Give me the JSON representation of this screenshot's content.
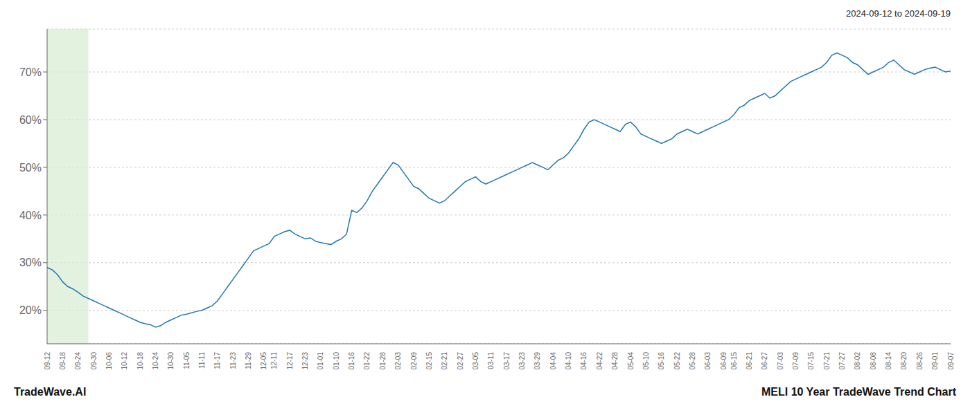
{
  "chart_data": {
    "type": "line",
    "title": "2024-09-12 to 2024-09-19",
    "annotations": [
      "TradeWave.AI",
      "MELI 10 Year TradeWave Trend Chart"
    ],
    "color": "#1f78b4",
    "grid": true,
    "highlight": {
      "start": 0,
      "end": 8,
      "color": "#d6ecd2"
    },
    "ylim": [
      13,
      79
    ],
    "yticks": [
      {
        "value": 20,
        "label": "20%"
      },
      {
        "value": 30,
        "label": "30%"
      },
      {
        "value": 40,
        "label": "40%"
      },
      {
        "value": 50,
        "label": "50%"
      },
      {
        "value": 60,
        "label": "60%"
      },
      {
        "value": 70,
        "label": "70%"
      }
    ],
    "categories": [
      "09-12",
      null,
      null,
      "09-18",
      null,
      null,
      "09-24",
      null,
      null,
      "09-30",
      null,
      null,
      "10-06",
      null,
      null,
      "10-12",
      null,
      null,
      "10-18",
      null,
      null,
      "10-24",
      null,
      null,
      "10-30",
      null,
      null,
      "11-05",
      null,
      null,
      "11-11",
      null,
      null,
      "11-17",
      null,
      null,
      "11-23",
      null,
      null,
      "11-29",
      null,
      null,
      "12-05",
      null,
      "12-11",
      null,
      null,
      "12-17",
      null,
      null,
      "12-23",
      null,
      null,
      "01-01",
      null,
      null,
      "01-10",
      null,
      null,
      "01-16",
      null,
      null,
      "01-22",
      null,
      null,
      "01-28",
      null,
      null,
      "02-03",
      null,
      null,
      "02-09",
      null,
      null,
      "02-15",
      null,
      null,
      "02-21",
      null,
      null,
      "02-27",
      null,
      null,
      "03-05",
      null,
      null,
      "03-11",
      null,
      null,
      "03-17",
      null,
      null,
      "03-23",
      null,
      null,
      "03-29",
      null,
      null,
      "04-04",
      null,
      null,
      "04-10",
      null,
      null,
      "04-16",
      null,
      null,
      "04-22",
      null,
      null,
      "04-28",
      null,
      null,
      "05-04",
      null,
      null,
      "05-10",
      null,
      null,
      "05-16",
      null,
      null,
      "05-22",
      null,
      null,
      "05-28",
      null,
      null,
      "06-03",
      null,
      null,
      "06-09",
      null,
      "06-15",
      null,
      null,
      "06-21",
      null,
      null,
      "06-27",
      null,
      null,
      "07-03",
      null,
      null,
      "07-09",
      null,
      null,
      "07-15",
      null,
      null,
      "07-21",
      null,
      null,
      "07-27",
      null,
      null,
      "08-02",
      null,
      null,
      "08-08",
      null,
      null,
      "08-14",
      null,
      null,
      "08-20",
      null,
      null,
      "08-26",
      null,
      null,
      "09-01",
      null,
      null,
      "09-07"
    ],
    "values": [
      29.0,
      28.5,
      27.5,
      26.0,
      25.0,
      24.5,
      23.8,
      23.0,
      22.5,
      22.0,
      21.5,
      21.0,
      20.5,
      20.0,
      19.5,
      19.0,
      18.5,
      18.0,
      17.5,
      17.2,
      17.0,
      16.5,
      16.8,
      17.5,
      18.0,
      18.5,
      19.0,
      19.2,
      19.5,
      19.8,
      20.0,
      20.5,
      21.0,
      22.0,
      23.5,
      25.0,
      26.5,
      28.0,
      29.5,
      31.0,
      32.5,
      33.0,
      33.5,
      34.0,
      35.5,
      36.0,
      36.5,
      36.8,
      36.0,
      35.5,
      35.0,
      35.2,
      34.5,
      34.2,
      34.0,
      33.8,
      34.5,
      35.0,
      36.0,
      41.0,
      40.5,
      41.5,
      43.0,
      45.0,
      46.5,
      48.0,
      49.5,
      51.0,
      50.5,
      49.0,
      47.5,
      46.0,
      45.5,
      44.5,
      43.5,
      43.0,
      42.5,
      43.0,
      44.0,
      45.0,
      46.0,
      47.0,
      47.5,
      48.0,
      47.0,
      46.5,
      47.0,
      47.5,
      48.0,
      48.5,
      49.0,
      49.5,
      50.0,
      50.5,
      51.0,
      50.5,
      50.0,
      49.5,
      50.5,
      51.5,
      52.0,
      53.0,
      54.5,
      56.0,
      58.0,
      59.5,
      60.0,
      59.5,
      59.0,
      58.5,
      58.0,
      57.5,
      59.0,
      59.5,
      58.5,
      57.0,
      56.5,
      56.0,
      55.5,
      55.0,
      55.5,
      56.0,
      57.0,
      57.5,
      58.0,
      57.5,
      57.0,
      57.5,
      58.0,
      58.5,
      59.0,
      59.5,
      60.0,
      61.0,
      62.5,
      63.0,
      64.0,
      64.5,
      65.0,
      65.5,
      64.5,
      65.0,
      66.0,
      67.0,
      68.0,
      68.5,
      69.0,
      69.5,
      70.0,
      70.5,
      71.0,
      72.0,
      73.5,
      74.0,
      73.5,
      73.0,
      72.0,
      71.5,
      70.5,
      69.5,
      70.0,
      70.5,
      71.0,
      72.0,
      72.5,
      71.5,
      70.5,
      70.0,
      69.5,
      70.0,
      70.5,
      70.8,
      71.0,
      70.5,
      70.0,
      70.2
    ]
  }
}
